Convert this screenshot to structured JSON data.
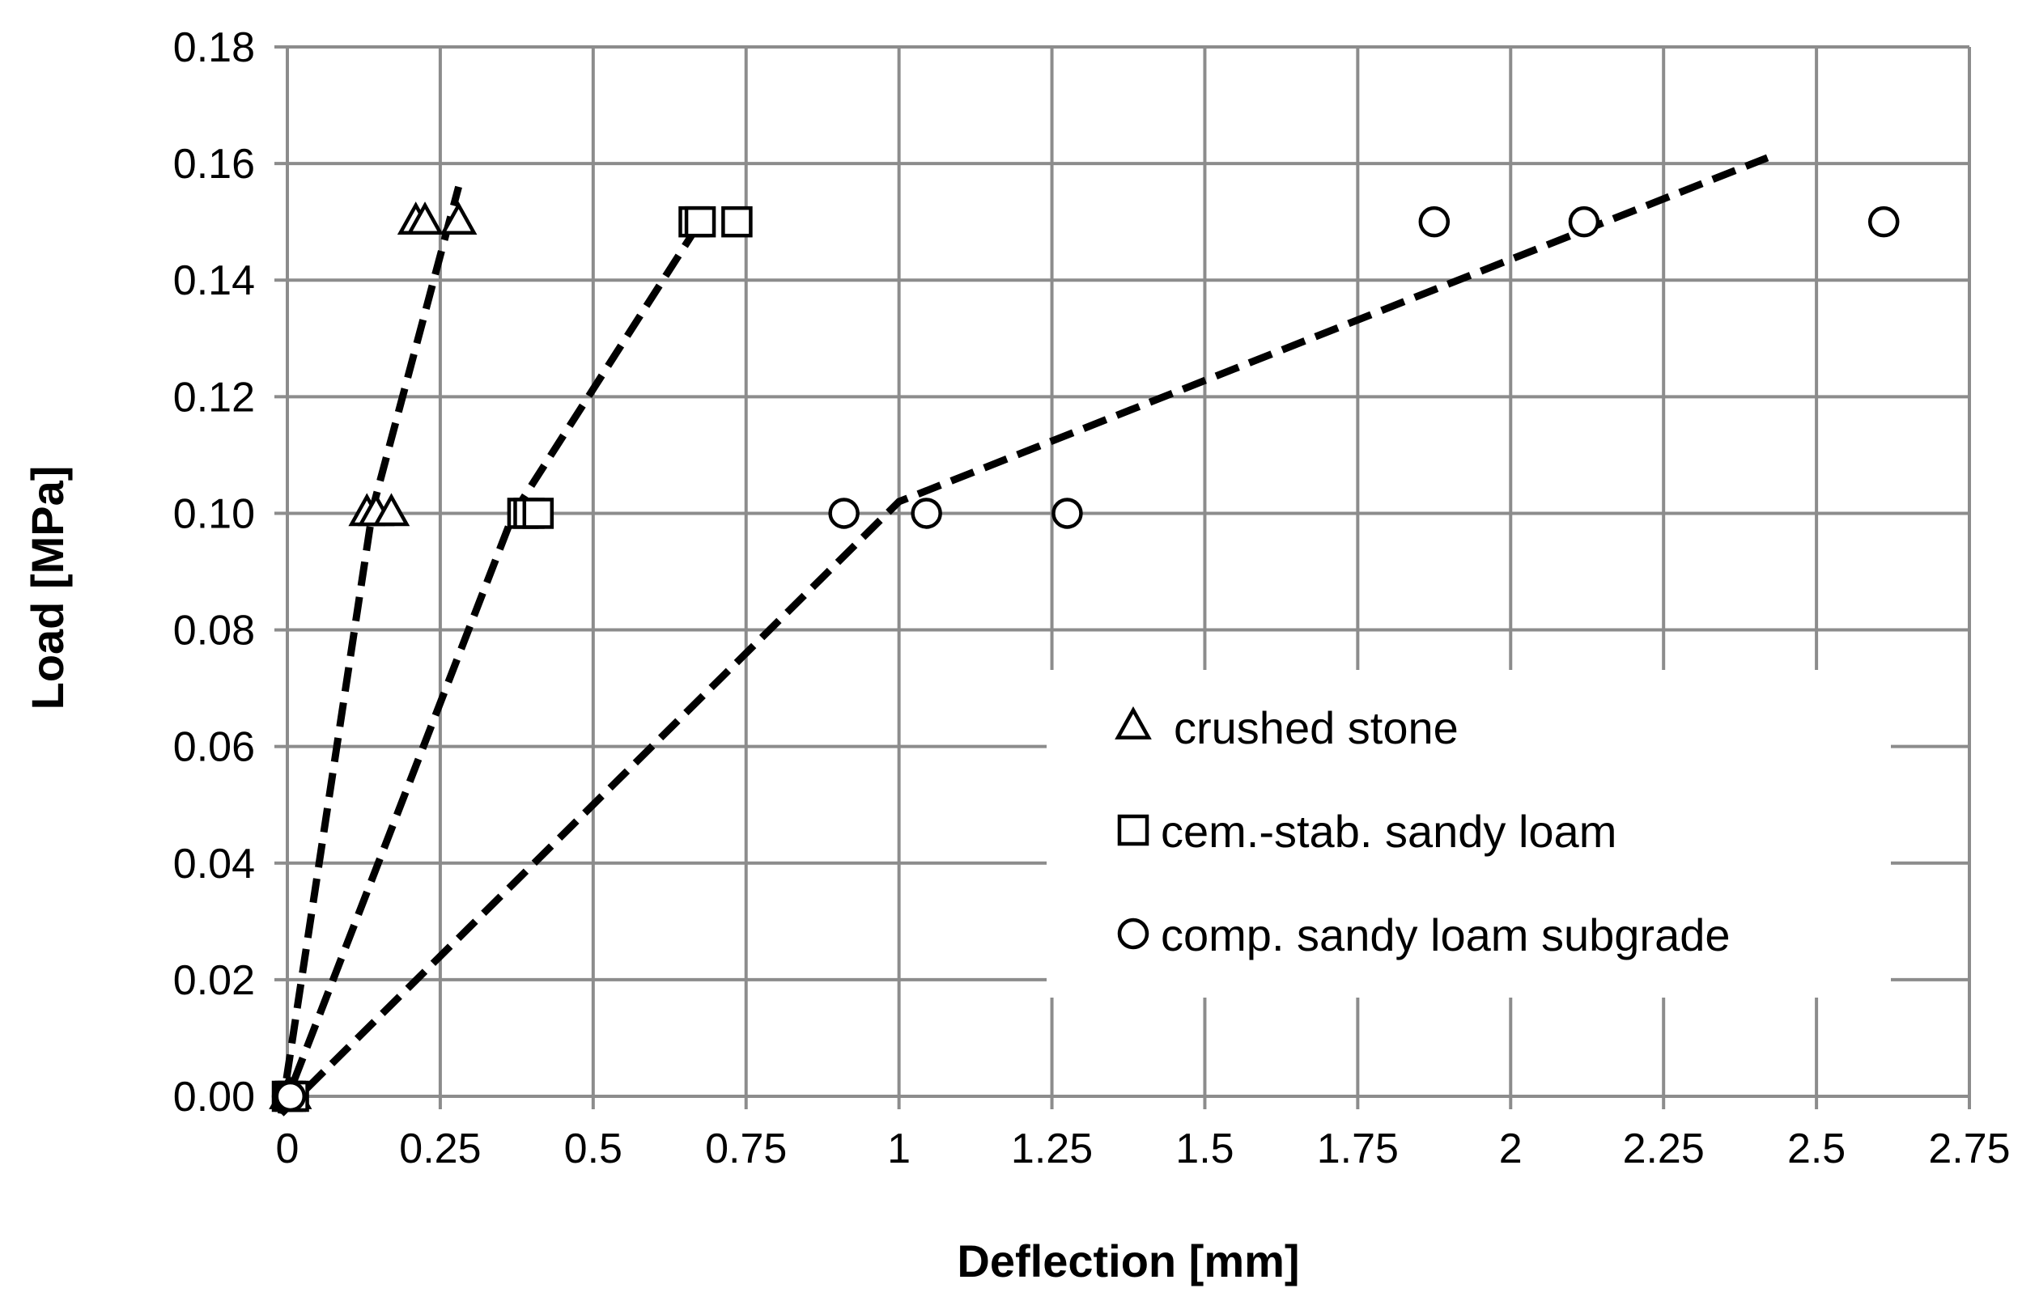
{
  "chart_data": {
    "type": "scatter",
    "xlabel": "Deflection [mm]",
    "ylabel": "Load [MPa]",
    "xlim": [
      0,
      2.75
    ],
    "ylim": [
      0,
      0.18
    ],
    "x_ticks": [
      0,
      0.25,
      0.5,
      0.75,
      1,
      1.25,
      1.5,
      1.75,
      2,
      2.25,
      2.5,
      2.75
    ],
    "x_tick_labels": [
      "0",
      "0.25",
      "0.5",
      "0.75",
      "1",
      "1.25",
      "1.5",
      "1.75",
      "2",
      "2.25",
      "2.5",
      "2.75"
    ],
    "y_ticks": [
      0,
      0.02,
      0.04,
      0.06,
      0.08,
      0.1,
      0.12,
      0.14,
      0.16,
      0.18
    ],
    "y_tick_labels": [
      "0.00",
      "0.02",
      "0.04",
      "0.06",
      "0.08",
      "0.10",
      "0.12",
      "0.14",
      "0.16",
      "0.18"
    ],
    "grid": true,
    "legend_position": "lower-right",
    "series": [
      {
        "name": "crushed stone",
        "marker": "triangle",
        "points": [
          {
            "x": 0,
            "y": 0
          },
          {
            "x": 0.005,
            "y": 0
          },
          {
            "x": 0.01,
            "y": 0
          },
          {
            "x": 0.13,
            "y": 0.1
          },
          {
            "x": 0.145,
            "y": 0.1
          },
          {
            "x": 0.17,
            "y": 0.1
          },
          {
            "x": 0.21,
            "y": 0.15
          },
          {
            "x": 0.225,
            "y": 0.15
          },
          {
            "x": 0.28,
            "y": 0.15
          }
        ],
        "trendline": [
          {
            "x": -0.01,
            "y": -0.003
          },
          {
            "x": 0.14,
            "y": 0.101
          },
          {
            "x": 0.28,
            "y": 0.156
          }
        ]
      },
      {
        "name": "cem.-stab. sandy loam",
        "marker": "square",
        "points": [
          {
            "x": 0,
            "y": 0
          },
          {
            "x": 0.005,
            "y": 0
          },
          {
            "x": 0.01,
            "y": 0
          },
          {
            "x": 0.385,
            "y": 0.1
          },
          {
            "x": 0.395,
            "y": 0.1
          },
          {
            "x": 0.41,
            "y": 0.1
          },
          {
            "x": 0.665,
            "y": 0.15
          },
          {
            "x": 0.675,
            "y": 0.15
          },
          {
            "x": 0.735,
            "y": 0.15
          }
        ],
        "trendline": [
          {
            "x": -0.01,
            "y": -0.003
          },
          {
            "x": 0.37,
            "y": 0.1
          },
          {
            "x": 0.675,
            "y": 0.15
          }
        ]
      },
      {
        "name": "comp. sandy loam subgrade",
        "marker": "circle",
        "points": [
          {
            "x": 0,
            "y": 0
          },
          {
            "x": 0.005,
            "y": 0
          },
          {
            "x": 0.91,
            "y": 0.1
          },
          {
            "x": 1.045,
            "y": 0.1
          },
          {
            "x": 1.275,
            "y": 0.1
          },
          {
            "x": 1.875,
            "y": 0.15
          },
          {
            "x": 2.12,
            "y": 0.15
          },
          {
            "x": 2.61,
            "y": 0.15
          }
        ],
        "trendline": [
          {
            "x": -0.01,
            "y": -0.003
          },
          {
            "x": 1.0,
            "y": 0.102
          },
          {
            "x": 2.42,
            "y": 0.161
          }
        ]
      }
    ]
  }
}
